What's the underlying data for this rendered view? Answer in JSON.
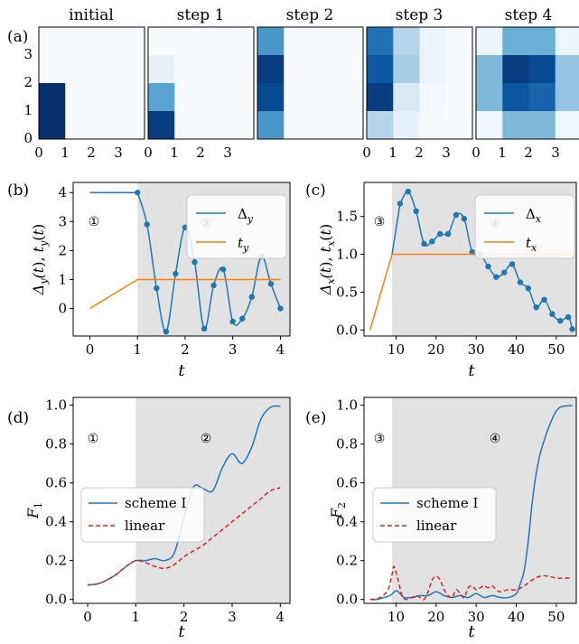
{
  "colors": {
    "blue": "#1f77b4",
    "orange": "#ff7f0e",
    "red": "#d62728",
    "shade": "#e2e2e2",
    "heat_low": "#f7fbff",
    "heat_high": "#08306b"
  },
  "chart_data": [
    {
      "id": "a",
      "type": "heatmap",
      "panel_label": "(a)",
      "x_ticks": [
        "0",
        "1",
        "2",
        "3"
      ],
      "y_ticks": [
        "0",
        "1",
        "2",
        "3"
      ],
      "panels": [
        {
          "title": "initial",
          "grid": [
            [
              0,
              0,
              0,
              0
            ],
            [
              0,
              0,
              0,
              0
            ],
            [
              1,
              0,
              0,
              0
            ],
            [
              1,
              0,
              0,
              0
            ]
          ]
        },
        {
          "title": "step 1",
          "grid": [
            [
              0,
              0,
              0,
              0
            ],
            [
              0.08,
              0,
              0,
              0
            ],
            [
              0.55,
              0,
              0,
              0
            ],
            [
              0.95,
              0,
              0,
              0
            ]
          ]
        },
        {
          "title": "step 2",
          "grid": [
            [
              0.6,
              0,
              0,
              0
            ],
            [
              0.95,
              0,
              0,
              0
            ],
            [
              0.9,
              0,
              0,
              0
            ],
            [
              0.6,
              0,
              0,
              0
            ]
          ]
        },
        {
          "title": "step 3",
          "grid": [
            [
              0.75,
              0.3,
              0.06,
              0
            ],
            [
              0.85,
              0.35,
              0.06,
              0
            ],
            [
              0.95,
              0.15,
              0.02,
              0
            ],
            [
              0.3,
              0.08,
              0.01,
              0
            ]
          ]
        },
        {
          "title": "step 4",
          "grid": [
            [
              0.05,
              0.5,
              0.5,
              0.05
            ],
            [
              0.45,
              0.95,
              0.9,
              0.4
            ],
            [
              0.45,
              0.85,
              0.8,
              0.4
            ],
            [
              0.04,
              0.45,
              0.45,
              0.04
            ]
          ]
        }
      ]
    },
    {
      "id": "b",
      "type": "line",
      "panel_label": "(b)",
      "xlabel": "t",
      "ylabel": "Δy(t), ty(t)",
      "xlim": [
        -0.35,
        4.2
      ],
      "ylim": [
        -0.95,
        4.35
      ],
      "x_ticks": [
        0,
        1,
        2,
        3,
        4
      ],
      "y_ticks": [
        0,
        1,
        2,
        3,
        4
      ],
      "shade_from": 1,
      "regions": [
        "①",
        "②"
      ],
      "series": [
        {
          "name": "Δy",
          "color": "blue",
          "style": "line-markers",
          "x": [
            0,
            1,
            1.2,
            1.4,
            1.6,
            1.8,
            2.0,
            2.2,
            2.4,
            2.6,
            2.8,
            3.0,
            3.2,
            3.4,
            3.6,
            3.8,
            4.0
          ],
          "y": [
            4,
            4,
            2.9,
            0.7,
            -0.8,
            1.2,
            2.8,
            1.6,
            -0.7,
            0.8,
            1.35,
            -0.45,
            -0.35,
            0.4,
            1.8,
            0.85,
            0
          ]
        },
        {
          "name": "ty",
          "color": "orange",
          "style": "line",
          "x": [
            0,
            1,
            4
          ],
          "y": [
            0,
            1,
            1
          ]
        }
      ]
    },
    {
      "id": "c",
      "type": "line",
      "panel_label": "(c)",
      "xlabel": "t",
      "ylabel": "Δx(t), tx(t)",
      "xlim": [
        2,
        55
      ],
      "ylim": [
        -0.08,
        1.95
      ],
      "x_ticks": [
        10,
        20,
        30,
        40,
        50
      ],
      "y_ticks": [
        0.0,
        0.5,
        1.0,
        1.5
      ],
      "shade_from": 9,
      "regions": [
        "③",
        "④"
      ],
      "series": [
        {
          "name": "Δx",
          "color": "blue",
          "style": "line-markers",
          "x": [
            9,
            11,
            13,
            15,
            17,
            19,
            21,
            23,
            25,
            27,
            29,
            31,
            33,
            35,
            37,
            39,
            41,
            43,
            45,
            47,
            49,
            51,
            53,
            54
          ],
          "y": [
            1.0,
            1.67,
            1.83,
            1.57,
            1.14,
            1.17,
            1.27,
            1.27,
            1.52,
            1.47,
            1.03,
            1.0,
            0.84,
            0.7,
            0.76,
            0.87,
            0.63,
            0.55,
            0.3,
            0.4,
            0.21,
            0.12,
            0.17,
            0.01
          ]
        },
        {
          "name": "tx",
          "color": "orange",
          "style": "line",
          "x": [
            3.5,
            9,
            54
          ],
          "y": [
            0,
            1,
            1
          ]
        }
      ]
    },
    {
      "id": "d",
      "type": "line",
      "panel_label": "(d)",
      "xlabel": "t",
      "ylabel": "F1",
      "xlim": [
        -0.3,
        4.2
      ],
      "ylim": [
        -0.02,
        1.04
      ],
      "x_ticks": [
        0,
        1,
        2,
        3,
        4
      ],
      "y_ticks": [
        0.0,
        0.2,
        0.4,
        0.6,
        0.8,
        1.0
      ],
      "shade_from": 1,
      "regions": [
        "①",
        "②"
      ],
      "series": [
        {
          "name": "scheme I",
          "color": "blue",
          "style": "line",
          "x": [
            0,
            0.2,
            0.4,
            0.6,
            0.8,
            1.0,
            1.2,
            1.4,
            1.6,
            1.8,
            2.0,
            2.2,
            2.4,
            2.6,
            2.8,
            3.0,
            3.2,
            3.4,
            3.6,
            3.8,
            4.0
          ],
          "y": [
            0.075,
            0.08,
            0.1,
            0.13,
            0.17,
            0.2,
            0.2,
            0.21,
            0.2,
            0.24,
            0.42,
            0.58,
            0.57,
            0.56,
            0.68,
            0.75,
            0.7,
            0.78,
            0.93,
            0.99,
            0.995
          ]
        },
        {
          "name": "linear",
          "color": "red",
          "style": "dashed",
          "x": [
            0,
            0.2,
            0.4,
            0.6,
            0.8,
            1.0,
            1.2,
            1.4,
            1.6,
            1.8,
            2.0,
            2.2,
            2.4,
            2.6,
            2.8,
            3.0,
            3.2,
            3.4,
            3.6,
            3.8,
            4.0
          ],
          "y": [
            0.075,
            0.08,
            0.1,
            0.13,
            0.17,
            0.2,
            0.19,
            0.17,
            0.16,
            0.18,
            0.22,
            0.25,
            0.28,
            0.32,
            0.36,
            0.4,
            0.44,
            0.48,
            0.52,
            0.56,
            0.575
          ]
        }
      ]
    },
    {
      "id": "e",
      "type": "line",
      "panel_label": "(e)",
      "xlabel": "t",
      "ylabel": "F2",
      "xlim": [
        2,
        55
      ],
      "ylim": [
        -0.02,
        1.04
      ],
      "x_ticks": [
        10,
        20,
        30,
        40,
        50
      ],
      "y_ticks": [
        0.0,
        0.2,
        0.4,
        0.6,
        0.8,
        1.0
      ],
      "shade_from": 9,
      "regions": [
        "③",
        "④"
      ],
      "series": [
        {
          "name": "scheme I",
          "color": "blue",
          "style": "line",
          "x": [
            3.5,
            5,
            7,
            8.5,
            10,
            11,
            12,
            14,
            16,
            18,
            20,
            22,
            24,
            26,
            28,
            30,
            32,
            34,
            36,
            38,
            40,
            41,
            42,
            43,
            44,
            45,
            46,
            47,
            48,
            49,
            50,
            51,
            52,
            53,
            54
          ],
          "y": [
            0.0,
            0.0,
            0.01,
            0.02,
            0.045,
            0.03,
            0.01,
            0.01,
            0.02,
            0.02,
            0.04,
            0.02,
            0.01,
            0.02,
            0.01,
            0.03,
            0.01,
            0.02,
            0.01,
            0.01,
            0.03,
            0.08,
            0.15,
            0.3,
            0.5,
            0.65,
            0.75,
            0.82,
            0.88,
            0.93,
            0.97,
            0.99,
            0.995,
            0.997,
            0.998
          ]
        },
        {
          "name": "linear",
          "color": "red",
          "style": "dashed",
          "x": [
            3.5,
            6,
            8,
            9,
            9.5,
            10.5,
            11.5,
            12.5,
            14,
            15,
            16,
            17,
            18,
            19,
            20,
            21,
            22,
            23,
            24,
            25,
            26,
            27,
            28,
            29,
            30,
            31,
            32,
            33,
            34,
            35,
            36,
            38,
            40,
            42,
            44,
            46,
            48,
            50,
            52,
            54
          ],
          "y": [
            0.0,
            0.01,
            0.05,
            0.13,
            0.17,
            0.1,
            0.02,
            0.0,
            0.01,
            0.02,
            0.01,
            0.0,
            0.04,
            0.1,
            0.12,
            0.1,
            0.05,
            0.02,
            0.01,
            0.05,
            0.03,
            0.01,
            0.06,
            0.07,
            0.05,
            0.06,
            0.07,
            0.06,
            0.07,
            0.05,
            0.04,
            0.05,
            0.05,
            0.07,
            0.1,
            0.12,
            0.12,
            0.11,
            0.11,
            0.11
          ]
        }
      ]
    }
  ]
}
